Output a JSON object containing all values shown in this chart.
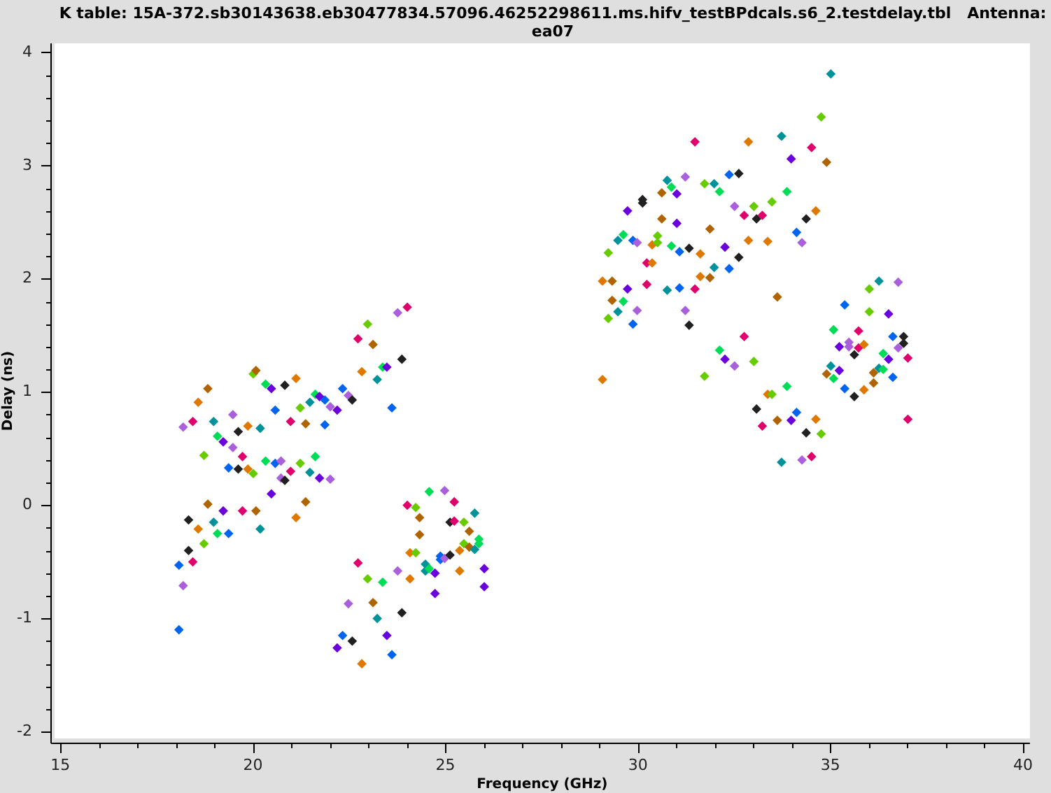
{
  "chart_data": {
    "type": "scatter",
    "title": "K table: 15A-372.sb30143638.eb30477834.57096.46252298611.ms.hifv_testBPdcals.s6_2.testdelay.tbl   Antenna: ea07",
    "xlabel": "Frequency (GHz)",
    "ylabel": "Delay (ns)",
    "xlim": [
      14.85,
      40.18
    ],
    "xticks": [
      15,
      {
        "value": 16,
        "label": null
      },
      {
        "value": 17,
        "label": null
      },
      {
        "value": 18,
        "label": null
      },
      {
        "value": 19,
        "label": null
      },
      20,
      {
        "value": 21,
        "label": null
      },
      {
        "value": 22,
        "label": null
      },
      {
        "value": 23,
        "label": null
      },
      {
        "value": 24,
        "label": null
      },
      25,
      {
        "value": 26,
        "label": null
      },
      {
        "value": 27,
        "label": null
      },
      {
        "value": 28,
        "label": null
      },
      {
        "value": 29,
        "label": null
      },
      30,
      {
        "value": 31,
        "label": null
      },
      {
        "value": 32,
        "label": null
      },
      {
        "value": 33,
        "label": null
      },
      {
        "value": 34,
        "label": null
      },
      35,
      {
        "value": 36,
        "label": null
      },
      {
        "value": 37,
        "label": null
      },
      {
        "value": 38,
        "label": null
      },
      {
        "value": 39,
        "label": null
      },
      40
    ],
    "ylim": [
      -2.06,
      4.08
    ],
    "yticks": [
      -2,
      {
        "value": -1.8,
        "label": null
      },
      {
        "value": -1.6,
        "label": null
      },
      {
        "value": -1.4,
        "label": null
      },
      {
        "value": -1.2,
        "label": null
      },
      -1,
      {
        "value": -0.8,
        "label": null
      },
      {
        "value": -0.6,
        "label": null
      },
      {
        "value": -0.4,
        "label": null
      },
      {
        "value": -0.2,
        "label": null
      },
      0,
      {
        "value": 0.2,
        "label": null
      },
      {
        "value": 0.4,
        "label": null
      },
      {
        "value": 0.6,
        "label": null
      },
      {
        "value": 0.8,
        "label": null
      },
      1,
      {
        "value": 1.2,
        "label": null
      },
      {
        "value": 1.4,
        "label": null
      },
      {
        "value": 1.6,
        "label": null
      },
      {
        "value": 1.8,
        "label": null
      },
      2,
      {
        "value": 2.2,
        "label": null
      },
      {
        "value": 2.4,
        "label": null
      },
      {
        "value": 2.6,
        "label": null
      },
      {
        "value": 2.8,
        "label": null
      },
      3,
      {
        "value": 3.2,
        "label": null
      },
      {
        "value": 3.4,
        "label": null
      },
      {
        "value": 3.6,
        "label": null
      },
      {
        "value": 3.8,
        "label": null
      },
      4
    ],
    "marker": "diamond",
    "x": [
      18.08,
      18.08,
      18.19,
      18.19,
      18.33,
      18.33,
      18.44,
      18.44,
      18.58,
      18.58,
      18.73,
      18.73,
      18.83,
      18.83,
      18.98,
      18.98,
      19.08,
      19.08,
      19.23,
      19.23,
      19.37,
      19.37,
      19.48,
      19.48,
      19.62,
      19.62,
      19.73,
      19.73,
      19.87,
      19.87,
      20.01,
      20.01,
      20.08,
      20.08,
      20.19,
      20.19,
      20.33,
      20.33,
      20.48,
      20.48,
      20.58,
      20.58,
      20.73,
      20.73,
      20.83,
      20.83,
      20.98,
      20.98,
      21.12,
      21.12,
      21.23,
      21.23,
      21.37,
      21.37,
      21.48,
      21.48,
      21.62,
      21.62,
      21.73,
      21.73,
      21.87,
      21.87,
      22.01,
      22.01,
      22.19,
      22.19,
      22.33,
      22.33,
      22.48,
      22.48,
      22.58,
      22.58,
      22.73,
      22.73,
      22.83,
      22.83,
      22.98,
      22.98,
      23.12,
      23.12,
      23.23,
      23.23,
      23.37,
      23.37,
      23.48,
      23.48,
      23.61,
      23.61,
      23.76,
      23.76,
      23.87,
      23.87,
      24.01,
      24.01,
      24.08,
      24.08,
      24.23,
      24.23,
      24.33,
      24.33,
      24.48,
      24.48,
      24.58,
      24.58,
      24.73,
      24.73,
      24.87,
      24.87,
      24.98,
      24.98,
      25.12,
      25.12,
      25.23,
      25.23,
      25.37,
      25.37,
      25.48,
      25.48,
      25.62,
      25.62,
      25.76,
      25.76,
      25.87,
      25.87,
      26.01,
      26.01,
      29.08,
      29.08,
      29.23,
      29.23,
      29.33,
      29.33,
      29.48,
      29.48,
      29.62,
      29.62,
      29.73,
      29.73,
      29.87,
      29.87,
      29.98,
      29.98,
      30.12,
      30.12,
      30.23,
      30.23,
      30.37,
      30.37,
      30.51,
      30.51,
      30.62,
      30.62,
      30.76,
      30.76,
      30.87,
      30.87,
      31.01,
      31.01,
      31.08,
      31.08,
      31.23,
      31.23,
      31.33,
      31.33,
      31.48,
      31.48,
      31.62,
      31.62,
      31.73,
      31.73,
      31.87,
      31.87,
      31.98,
      31.98,
      32.12,
      32.12,
      32.26,
      32.26,
      32.37,
      32.37,
      32.51,
      32.51,
      32.62,
      32.62,
      32.76,
      32.76,
      32.87,
      32.87,
      33.01,
      33.01,
      33.08,
      33.08,
      33.23,
      33.23,
      33.37,
      33.37,
      33.48,
      33.48,
      33.62,
      33.62,
      33.73,
      33.73,
      33.87,
      33.87,
      33.98,
      33.98,
      34.12,
      34.12,
      34.26,
      34.26,
      34.37,
      34.37,
      34.51,
      34.51,
      34.62,
      34.62,
      34.76,
      34.76,
      34.9,
      34.9,
      35.01,
      35.01,
      35.08,
      35.08,
      35.23,
      35.23,
      35.37,
      35.37,
      35.48,
      35.48,
      35.62,
      35.62,
      35.73,
      35.73,
      35.87,
      35.87,
      36.01,
      36.01,
      36.12,
      36.12,
      36.26,
      36.26,
      36.37,
      36.37,
      36.51,
      36.51,
      36.62,
      36.62,
      36.76,
      36.76,
      36.9,
      36.9,
      37.01,
      37.01
    ],
    "values": [
      -0.53,
      -1.1,
      0.69,
      -0.71,
      -0.13,
      -0.4,
      0.74,
      -0.5,
      0.91,
      -0.21,
      0.44,
      -0.34,
      1.03,
      0.01,
      0.74,
      -0.15,
      0.61,
      -0.25,
      0.56,
      -0.05,
      0.33,
      -0.25,
      0.8,
      0.51,
      0.65,
      0.32,
      0.43,
      -0.05,
      0.7,
      0.32,
      1.16,
      0.28,
      1.19,
      -0.05,
      0.68,
      -0.21,
      1.07,
      0.39,
      1.03,
      0.1,
      0.84,
      0.37,
      0.39,
      0.24,
      1.06,
      0.22,
      0.74,
      0.3,
      1.12,
      -0.11,
      0.86,
      0.37,
      0.72,
      0.03,
      0.91,
      0.29,
      0.98,
      0.43,
      0.96,
      0.24,
      0.93,
      0.71,
      0.87,
      0.23,
      0.84,
      -1.26,
      1.03,
      -1.15,
      0.97,
      -0.87,
      0.93,
      -1.2,
      1.47,
      -0.51,
      1.18,
      -1.4,
      1.6,
      -0.65,
      1.42,
      -0.86,
      1.11,
      -1.0,
      1.22,
      -0.68,
      1.22,
      -1.15,
      0.86,
      -1.32,
      1.7,
      -0.58,
      1.29,
      -0.95,
      1.75,
      0.0,
      -0.42,
      -0.65,
      -0.02,
      -0.42,
      -0.11,
      -0.26,
      -0.52,
      -0.58,
      0.12,
      -0.56,
      -0.6,
      -0.78,
      -0.45,
      -0.48,
      0.13,
      -0.47,
      -0.15,
      -0.44,
      0.03,
      -0.14,
      -0.4,
      -0.58,
      -0.15,
      -0.34,
      -0.23,
      -0.37,
      -0.07,
      -0.39,
      -0.3,
      -0.34,
      -0.56,
      -0.72,
      1.98,
      1.11,
      2.23,
      1.65,
      1.98,
      1.81,
      2.34,
      1.71,
      2.39,
      1.8,
      2.6,
      1.91,
      2.34,
      1.6,
      2.32,
      1.72,
      2.7,
      2.67,
      2.14,
      1.95,
      2.3,
      2.14,
      2.38,
      2.32,
      2.76,
      2.53,
      2.87,
      1.9,
      2.81,
      2.29,
      2.75,
      2.49,
      2.24,
      1.92,
      2.9,
      1.72,
      2.27,
      1.59,
      3.21,
      1.91,
      2.22,
      2.02,
      2.84,
      1.14,
      2.44,
      2.01,
      2.84,
      2.1,
      2.77,
      1.37,
      2.28,
      1.29,
      2.92,
      2.09,
      2.64,
      1.23,
      2.93,
      2.19,
      2.56,
      1.49,
      3.21,
      2.34,
      2.64,
      1.27,
      2.53,
      0.85,
      2.56,
      0.7,
      2.33,
      0.98,
      2.68,
      0.98,
      1.84,
      0.75,
      3.26,
      0.38,
      2.77,
      1.05,
      3.06,
      0.75,
      2.41,
      0.82,
      2.32,
      0.4,
      2.53,
      0.64,
      3.16,
      0.43,
      2.6,
      0.76,
      3.43,
      0.63,
      3.03,
      1.16,
      3.81,
      1.23,
      1.55,
      1.12,
      1.4,
      1.19,
      1.77,
      1.03,
      1.44,
      1.4,
      1.33,
      0.96,
      1.54,
      1.39,
      1.42,
      1.02,
      1.91,
      1.71,
      1.17,
      1.08,
      1.98,
      1.21,
      1.34,
      1.2,
      1.69,
      1.29,
      1.49,
      1.13,
      1.97,
      1.39,
      1.49,
      1.43,
      1.3,
      0.76
    ],
    "colors": [
      "#0064f0",
      "#0064f0",
      "#aa5fdc",
      "#aa5fdc",
      "#202020",
      "#202020",
      "#e0006b",
      "#e0006b",
      "#e07800",
      "#e07800",
      "#66cc00",
      "#66cc00",
      "#b06400",
      "#b06400",
      "#00929a",
      "#00929a",
      "#00dc55",
      "#00dc55",
      "#6a00dc",
      "#6a00dc",
      "#0064f0",
      "#0064f0",
      "#aa5fdc",
      "#aa5fdc",
      "#202020",
      "#202020",
      "#e0006b",
      "#e0006b",
      "#e07800",
      "#e07800",
      "#66cc00",
      "#66cc00",
      "#b06400",
      "#b06400",
      "#00929a",
      "#00929a",
      "#00dc55",
      "#00dc55",
      "#6a00dc",
      "#6a00dc",
      "#0064f0",
      "#0064f0",
      "#aa5fdc",
      "#aa5fdc",
      "#202020",
      "#202020",
      "#e0006b",
      "#e0006b",
      "#e07800",
      "#e07800",
      "#66cc00",
      "#66cc00",
      "#b06400",
      "#b06400",
      "#00929a",
      "#00929a",
      "#00dc55",
      "#00dc55",
      "#6a00dc",
      "#6a00dc",
      "#0064f0",
      "#0064f0",
      "#aa5fdc",
      "#aa5fdc",
      "#6a00dc",
      "#6a00dc",
      "#0064f0",
      "#0064f0",
      "#aa5fdc",
      "#aa5fdc",
      "#202020",
      "#202020",
      "#e0006b",
      "#e0006b",
      "#e07800",
      "#e07800",
      "#66cc00",
      "#66cc00",
      "#b06400",
      "#b06400",
      "#00929a",
      "#00929a",
      "#00dc55",
      "#00dc55",
      "#6a00dc",
      "#6a00dc",
      "#0064f0",
      "#0064f0",
      "#aa5fdc",
      "#aa5fdc",
      "#202020",
      "#202020",
      "#e0006b",
      "#e0006b",
      "#e07800",
      "#e07800",
      "#66cc00",
      "#66cc00",
      "#b06400",
      "#b06400",
      "#00929a",
      "#00929a",
      "#00dc55",
      "#00dc55",
      "#6a00dc",
      "#6a00dc",
      "#0064f0",
      "#0064f0",
      "#aa5fdc",
      "#aa5fdc",
      "#202020",
      "#202020",
      "#e0006b",
      "#e0006b",
      "#e07800",
      "#e07800",
      "#66cc00",
      "#66cc00",
      "#b06400",
      "#b06400",
      "#00929a",
      "#00929a",
      "#00dc55",
      "#00dc55",
      "#6a00dc",
      "#6a00dc",
      "#e07800",
      "#e07800",
      "#66cc00",
      "#66cc00",
      "#b06400",
      "#b06400",
      "#00929a",
      "#00929a",
      "#00dc55",
      "#00dc55",
      "#6a00dc",
      "#6a00dc",
      "#0064f0",
      "#0064f0",
      "#aa5fdc",
      "#aa5fdc",
      "#202020",
      "#202020",
      "#e0006b",
      "#e0006b",
      "#e07800",
      "#e07800",
      "#66cc00",
      "#66cc00",
      "#b06400",
      "#b06400",
      "#00929a",
      "#00929a",
      "#00dc55",
      "#00dc55",
      "#6a00dc",
      "#6a00dc",
      "#0064f0",
      "#0064f0",
      "#aa5fdc",
      "#aa5fdc",
      "#202020",
      "#202020",
      "#e0006b",
      "#e0006b",
      "#e07800",
      "#e07800",
      "#66cc00",
      "#66cc00",
      "#b06400",
      "#b06400",
      "#00929a",
      "#00929a",
      "#00dc55",
      "#00dc55",
      "#6a00dc",
      "#6a00dc",
      "#0064f0",
      "#0064f0",
      "#aa5fdc",
      "#aa5fdc",
      "#202020",
      "#202020",
      "#e0006b",
      "#e0006b",
      "#e07800",
      "#e07800",
      "#66cc00",
      "#66cc00",
      "#202020",
      "#202020",
      "#e0006b",
      "#e0006b",
      "#e07800",
      "#e07800",
      "#66cc00",
      "#66cc00",
      "#b06400",
      "#b06400",
      "#00929a",
      "#00929a",
      "#00dc55",
      "#00dc55",
      "#6a00dc",
      "#6a00dc",
      "#0064f0",
      "#0064f0",
      "#aa5fdc",
      "#aa5fdc",
      "#202020",
      "#202020",
      "#e0006b",
      "#e0006b",
      "#e07800",
      "#e07800",
      "#66cc00",
      "#66cc00",
      "#b06400",
      "#b06400",
      "#00929a",
      "#00929a",
      "#00dc55",
      "#00dc55",
      "#6a00dc",
      "#6a00dc",
      "#0064f0",
      "#0064f0",
      "#aa5fdc",
      "#aa5fdc",
      "#202020",
      "#202020",
      "#e0006b",
      "#e0006b",
      "#e07800",
      "#e07800",
      "#66cc00",
      "#66cc00",
      "#b06400",
      "#b06400",
      "#00929a",
      "#00929a",
      "#00dc55",
      "#00dc55",
      "#6a00dc",
      "#6a00dc",
      "#0064f0",
      "#0064f0",
      "#aa5fdc",
      "#aa5fdc",
      "#202020",
      "#202020",
      "#e0006b",
      "#e0006b"
    ]
  }
}
